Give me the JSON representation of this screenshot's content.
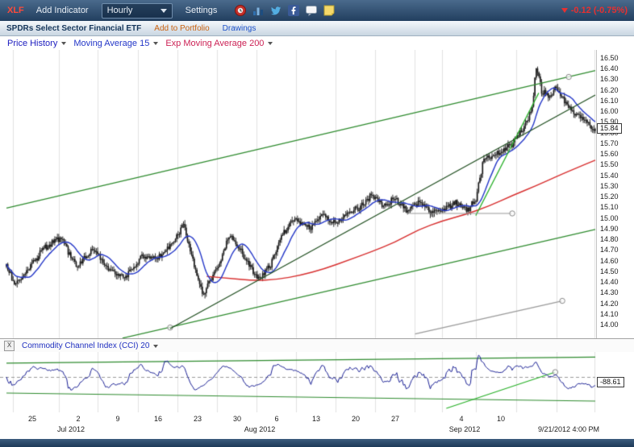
{
  "toolbar": {
    "symbol": "XLF",
    "menu_add_indicator": "Add Indicator",
    "interval_dropdown": "Hourly",
    "menu_settings": "Settings",
    "change_text": "-0.12 (-0.75%)",
    "change_color": "#e83030",
    "icons": [
      "alarm-icon",
      "bar-chart-icon",
      "twitter-icon",
      "facebook-icon",
      "chat-icon",
      "note-icon"
    ]
  },
  "infobar": {
    "instrument_name": "SPDRs Select Sector Financial ETF",
    "add_to_portfolio": "Add to Portfolio",
    "drawings": "Drawings"
  },
  "legend": {
    "items": [
      {
        "label": "Price History",
        "color": "#1c1cbf"
      },
      {
        "label": "Moving Average 15",
        "color": "#2437c8"
      },
      {
        "label": "Exp Moving Average 200",
        "color": "#cc2255"
      }
    ]
  },
  "cci_header": {
    "close_label": "X"
  },
  "chart_data": {
    "type": "candlestick",
    "symbol": "XLF",
    "interval": "Hourly",
    "bar_count": 440,
    "ylim": [
      13.95,
      16.56
    ],
    "price_ticks": [
      "16.50",
      "16.40",
      "16.30",
      "16.20",
      "16.10",
      "16.00",
      "15.90",
      "15.80",
      "15.70",
      "15.60",
      "15.50",
      "15.40",
      "15.30",
      "15.20",
      "15.10",
      "15.00",
      "14.90",
      "14.80",
      "14.70",
      "14.60",
      "14.50",
      "14.40",
      "14.30",
      "14.20",
      "14.10",
      "14.00"
    ],
    "last_price": "15.84",
    "candle_color": "#181818",
    "price_path_anchors": [
      [
        0,
        14.55
      ],
      [
        0.016,
        14.38
      ],
      [
        0.064,
        14.72
      ],
      [
        0.092,
        14.82
      ],
      [
        0.119,
        14.55
      ],
      [
        0.147,
        14.72
      ],
      [
        0.174,
        14.52
      ],
      [
        0.201,
        14.44
      ],
      [
        0.229,
        14.65
      ],
      [
        0.256,
        14.62
      ],
      [
        0.284,
        14.78
      ],
      [
        0.3,
        14.95
      ],
      [
        0.325,
        14.45
      ],
      [
        0.333,
        14.28
      ],
      [
        0.359,
        14.55
      ],
      [
        0.379,
        14.85
      ],
      [
        0.4,
        14.68
      ],
      [
        0.427,
        14.43
      ],
      [
        0.448,
        14.56
      ],
      [
        0.468,
        14.85
      ],
      [
        0.489,
        15.0
      ],
      [
        0.516,
        14.9
      ],
      [
        0.537,
        15.05
      ],
      [
        0.558,
        14.95
      ],
      [
        0.578,
        15.05
      ],
      [
        0.6,
        15.1
      ],
      [
        0.619,
        15.22
      ],
      [
        0.64,
        15.12
      ],
      [
        0.66,
        15.2
      ],
      [
        0.68,
        15.08
      ],
      [
        0.7,
        15.15
      ],
      [
        0.722,
        15.05
      ],
      [
        0.743,
        15.1
      ],
      [
        0.763,
        15.15
      ],
      [
        0.784,
        15.08
      ],
      [
        0.797,
        15.18
      ],
      [
        0.81,
        15.55
      ],
      [
        0.831,
        15.6
      ],
      [
        0.845,
        15.65
      ],
      [
        0.859,
        15.7
      ],
      [
        0.872,
        15.8
      ],
      [
        0.886,
        15.95
      ],
      [
        0.894,
        16.1
      ],
      [
        0.9,
        16.43
      ],
      [
        0.909,
        16.2
      ],
      [
        0.92,
        16.15
      ],
      [
        0.934,
        16.22
      ],
      [
        0.948,
        16.1
      ],
      [
        0.962,
        16.0
      ],
      [
        0.975,
        15.95
      ],
      [
        0.986,
        15.9
      ],
      [
        1,
        15.84
      ]
    ],
    "overlays": {
      "ma15": {
        "label": "Moving Average 15",
        "period": 15,
        "color": "#2437c8"
      },
      "ema200": {
        "label": "Exp Moving Average 200",
        "period": 200,
        "color": "#d83030",
        "anchors": [
          [
            0.34,
            14.46
          ],
          [
            0.38,
            14.44
          ],
          [
            0.42,
            14.42
          ],
          [
            0.46,
            14.43
          ],
          [
            0.5,
            14.47
          ],
          [
            0.54,
            14.53
          ],
          [
            0.58,
            14.61
          ],
          [
            0.62,
            14.69
          ],
          [
            0.66,
            14.78
          ],
          [
            0.7,
            14.9
          ],
          [
            0.74,
            14.98
          ],
          [
            0.78,
            15.04
          ],
          [
            0.82,
            15.12
          ],
          [
            0.86,
            15.22
          ],
          [
            0.9,
            15.31
          ],
          [
            0.94,
            15.41
          ],
          [
            0.97,
            15.48
          ],
          [
            1,
            15.55
          ]
        ]
      }
    },
    "annotations": [
      {
        "x1": 0,
        "p1": 15.1,
        "x2": 1,
        "p2": 16.39,
        "color": "#2e8b2e",
        "width": 1.2,
        "circle": [
          0.955,
          16.33
        ]
      },
      {
        "x1": 0.197,
        "p1": 13.88,
        "x2": 1,
        "p2": 14.9,
        "color": "#2e8b2e",
        "width": 1.2,
        "circle": [
          0.278,
          13.98
        ]
      },
      {
        "x1": 0.278,
        "p1": 13.97,
        "x2": 1,
        "p2": 16.16,
        "color": "#1e4d1e",
        "width": 1.2
      },
      {
        "x1": 0.797,
        "p1": 15.03,
        "x2": 0.904,
        "p2": 16.18,
        "color": "#27b027",
        "width": 1.2
      },
      {
        "x1": 0.694,
        "p1": 13.92,
        "x2": 0.944,
        "p2": 14.23,
        "color": "#9a9a9a",
        "width": 1.2,
        "circle": [
          0.944,
          14.23
        ]
      },
      {
        "x1": 0.685,
        "p1": 15.05,
        "x2": 0.859,
        "p2": 15.05,
        "color": "#9a9a9a",
        "width": 1.2,
        "circle": [
          0.859,
          15.05
        ]
      }
    ],
    "x_axis": {
      "day_labels": [
        {
          "t": "25",
          "x": 40
        },
        {
          "t": "2",
          "x": 97
        },
        {
          "t": "9",
          "x": 146
        },
        {
          "t": "16",
          "x": 196
        },
        {
          "t": "23",
          "x": 245
        },
        {
          "t": "30",
          "x": 294
        },
        {
          "t": "6",
          "x": 343
        },
        {
          "t": "13",
          "x": 392
        },
        {
          "t": "20",
          "x": 441
        },
        {
          "t": "27",
          "x": 490
        },
        {
          "t": "4",
          "x": 572
        },
        {
          "t": "10",
          "x": 621
        }
      ],
      "month_labels": [
        {
          "t": "Jul 2012",
          "x": 88
        },
        {
          "t": "Aug 2012",
          "x": 322
        },
        {
          "t": "Sep 2012",
          "x": 576
        }
      ],
      "timestamp": "9/21/2012 4:00 PM",
      "gridlines": [
        16,
        73,
        121,
        171,
        220,
        269,
        318,
        367,
        416,
        465,
        514,
        548,
        590,
        640,
        690,
        737
      ]
    },
    "cci": {
      "label": "Commodity Channel Index (CCI) 20",
      "period": 20,
      "line_color": "#1c2296",
      "ticks": [
        {
          "t": "250.00",
          "v": 250
        },
        {
          "t": "0.00",
          "v": 0
        },
        {
          "t": "-250.00",
          "v": -250
        }
      ],
      "last_value": "-88.61",
      "annotations": [
        {
          "x1": 0,
          "v1": 210,
          "x2": 1,
          "v2": 300,
          "color": "#2e8b2e",
          "width": 1.2
        },
        {
          "x1": 0,
          "v1": -244,
          "x2": 1,
          "v2": -366,
          "color": "#2e8b2e",
          "width": 1.2
        },
        {
          "x1": 0.747,
          "v1": -476,
          "x2": 0.932,
          "v2": 73,
          "color": "#27b027",
          "width": 1.2,
          "circle": [
            0.932,
            73
          ]
        }
      ]
    }
  }
}
